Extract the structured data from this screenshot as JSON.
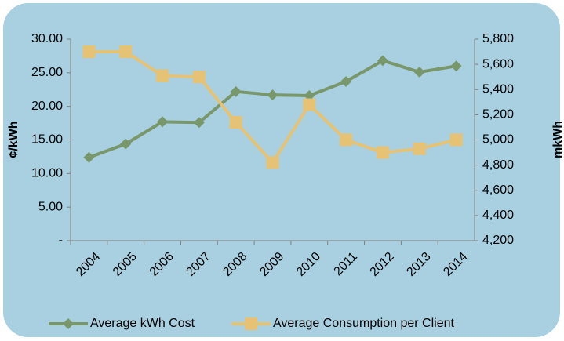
{
  "chart_data": {
    "type": "line",
    "categories": [
      "2004",
      "2005",
      "2006",
      "2007",
      "2008",
      "2009",
      "2010",
      "2011",
      "2012",
      "2013",
      "2014"
    ],
    "series": [
      {
        "name": "Average kWh Cost",
        "color": "#78976b",
        "marker": "diamond",
        "axis": "y",
        "values": [
          12.4,
          14.4,
          17.7,
          17.6,
          22.2,
          21.7,
          21.6,
          23.7,
          26.8,
          25.1,
          26.0
        ]
      },
      {
        "name": "Average Consumption per Client",
        "color": "#e6c274",
        "marker": "square",
        "axis": "y2",
        "values": [
          5700,
          5700,
          5510,
          5500,
          5140,
          4820,
          5280,
          5000,
          4900,
          4930,
          5000
        ]
      }
    ],
    "ylabel": "¢/kWh",
    "y2label": "mkWh",
    "ylim": [
      0,
      30
    ],
    "yticks": [
      {
        "value": 0,
        "label": "-"
      },
      {
        "value": 5,
        "label": "5.00"
      },
      {
        "value": 10,
        "label": "10.00"
      },
      {
        "value": 15,
        "label": "15.00"
      },
      {
        "value": 20,
        "label": "20.00"
      },
      {
        "value": 25,
        "label": "25.00"
      },
      {
        "value": 30,
        "label": "30.00"
      }
    ],
    "y2lim": [
      4200,
      5800
    ],
    "y2ticks": [
      {
        "value": 4200,
        "label": "4,200"
      },
      {
        "value": 4400,
        "label": "4,400"
      },
      {
        "value": 4600,
        "label": "4,600"
      },
      {
        "value": 4800,
        "label": "4,800"
      },
      {
        "value": 5000,
        "label": "5,000"
      },
      {
        "value": 5200,
        "label": "5,200"
      },
      {
        "value": 5400,
        "label": "5,400"
      },
      {
        "value": 5600,
        "label": "5,600"
      },
      {
        "value": 5800,
        "label": "5,800"
      }
    ],
    "legend": "bottom",
    "grid": false
  }
}
